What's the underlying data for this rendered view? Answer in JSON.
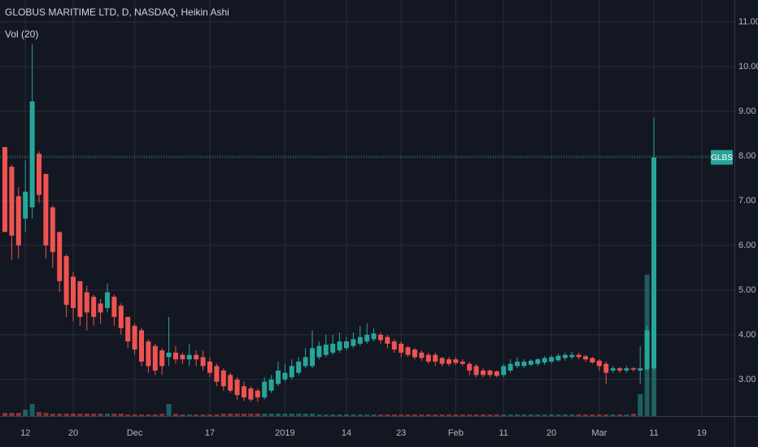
{
  "chart_data": {
    "type": "candlestick",
    "title": "GLOBUS MARITIME LTD, D, NASDAQ, Heikin Ashi",
    "indicator_label": "Vol (20)",
    "categories": [
      null,
      null,
      null,
      "12",
      null,
      null,
      null,
      null,
      null,
      null,
      "20",
      null,
      null,
      null,
      null,
      null,
      null,
      null,
      null,
      "Dec",
      null,
      null,
      null,
      null,
      null,
      null,
      null,
      null,
      null,
      null,
      "17",
      null,
      null,
      null,
      null,
      null,
      null,
      null,
      null,
      null,
      null,
      "2019",
      null,
      null,
      null,
      null,
      null,
      null,
      null,
      null,
      "14",
      null,
      null,
      null,
      null,
      null,
      null,
      null,
      "23",
      null,
      null,
      null,
      null,
      null,
      null,
      null,
      "Feb",
      null,
      null,
      null,
      null,
      null,
      null,
      "11",
      null,
      null,
      null,
      null,
      null,
      null,
      "20",
      null,
      null,
      null,
      null,
      null,
      null,
      "Mar",
      null,
      null,
      null,
      null,
      null,
      null,
      null,
      "11",
      null,
      null,
      null,
      null,
      null,
      null,
      "19"
    ],
    "open": [
      8.2,
      7.76,
      7.1,
      6.6,
      6.85,
      8.05,
      7.6,
      6.85,
      6.3,
      5.76,
      5.3,
      5.2,
      4.95,
      4.85,
      4.7,
      4.6,
      4.85,
      4.65,
      4.4,
      4.2,
      4.1,
      3.85,
      3.75,
      3.65,
      3.5,
      3.6,
      3.55,
      3.45,
      3.55,
      3.5,
      3.4,
      3.3,
      3.2,
      3.1,
      3.0,
      2.85,
      2.8,
      2.75,
      2.6,
      2.75,
      2.9,
      3.0,
      3.05,
      3.15,
      3.3,
      3.3,
      3.5,
      3.55,
      3.6,
      3.65,
      3.7,
      3.75,
      3.8,
      3.85,
      3.9,
      4.0,
      3.95,
      3.85,
      3.8,
      3.72,
      3.67,
      3.6,
      3.55,
      3.55,
      3.48,
      3.45,
      3.45,
      3.4,
      3.35,
      3.3,
      3.2,
      3.2,
      3.18,
      3.1,
      3.2,
      3.3,
      3.3,
      3.33,
      3.35,
      3.38,
      3.4,
      3.43,
      3.48,
      3.5,
      3.55,
      3.52,
      3.48,
      3.42,
      3.35,
      3.2,
      3.25,
      3.2,
      3.25,
      3.2,
      3.23,
      3.25,
      null,
      null,
      null,
      null,
      null,
      null,
      null
    ],
    "high": [
      8.2,
      7.8,
      7.3,
      7.9,
      10.5,
      8.1,
      7.6,
      6.9,
      6.3,
      5.8,
      5.4,
      5.2,
      5.1,
      4.9,
      4.8,
      5.15,
      4.9,
      4.7,
      4.4,
      4.25,
      4.15,
      3.9,
      3.8,
      3.7,
      4.4,
      3.75,
      3.6,
      3.8,
      3.65,
      3.65,
      3.5,
      3.35,
      3.25,
      3.15,
      3.05,
      2.95,
      2.85,
      2.8,
      3.05,
      3.1,
      3.4,
      3.35,
      3.45,
      3.5,
      3.7,
      4.1,
      3.85,
      4.0,
      4.0,
      4.05,
      3.95,
      4.05,
      4.2,
      4.25,
      4.15,
      4.05,
      4.0,
      3.9,
      3.85,
      3.75,
      3.7,
      3.65,
      3.6,
      3.6,
      3.5,
      3.5,
      3.5,
      3.45,
      3.4,
      3.35,
      3.25,
      3.22,
      3.2,
      3.35,
      3.45,
      3.5,
      3.45,
      3.45,
      3.48,
      3.52,
      3.55,
      3.58,
      3.6,
      3.62,
      3.6,
      3.55,
      3.5,
      3.45,
      3.4,
      3.3,
      3.28,
      3.3,
      3.28,
      3.75,
      4.2,
      8.85,
      null,
      null,
      null,
      null,
      null,
      null,
      null
    ],
    "low": [
      6.3,
      5.67,
      5.7,
      6.3,
      6.6,
      6.95,
      5.7,
      5.5,
      4.95,
      4.4,
      4.3,
      4.2,
      4.1,
      4.2,
      4.25,
      4.5,
      4.2,
      4.0,
      3.7,
      3.55,
      3.3,
      3.15,
      3.1,
      3.1,
      3.3,
      3.35,
      3.35,
      3.3,
      3.3,
      3.2,
      3.05,
      2.85,
      2.75,
      2.7,
      2.55,
      2.52,
      2.5,
      2.5,
      2.55,
      2.7,
      2.85,
      2.95,
      3.0,
      3.1,
      3.25,
      3.25,
      3.45,
      3.5,
      3.55,
      3.6,
      3.65,
      3.7,
      3.75,
      3.8,
      3.85,
      3.8,
      3.7,
      3.6,
      3.5,
      3.5,
      3.45,
      3.42,
      3.35,
      3.3,
      3.3,
      3.3,
      3.32,
      3.3,
      3.1,
      3.05,
      3.05,
      3.05,
      3.05,
      3.05,
      3.15,
      3.25,
      3.25,
      3.3,
      3.3,
      3.33,
      3.35,
      3.4,
      3.42,
      3.45,
      3.45,
      3.4,
      3.35,
      3.2,
      2.9,
      3.15,
      3.15,
      3.15,
      3.18,
      2.9,
      3.2,
      3.2,
      null,
      null,
      null,
      null,
      null,
      null,
      null
    ],
    "close": [
      6.3,
      6.22,
      6.0,
      7.2,
      9.22,
      7.13,
      6.0,
      5.85,
      5.2,
      4.67,
      4.6,
      4.4,
      4.5,
      4.4,
      4.5,
      4.95,
      4.4,
      4.15,
      3.85,
      3.67,
      3.4,
      3.3,
      3.2,
      3.3,
      3.6,
      3.45,
      3.45,
      3.55,
      3.45,
      3.3,
      3.15,
      2.95,
      2.85,
      2.75,
      2.65,
      2.6,
      2.55,
      2.6,
      2.95,
      3.0,
      3.2,
      3.15,
      3.3,
      3.4,
      3.5,
      3.7,
      3.75,
      3.78,
      3.8,
      3.85,
      3.85,
      3.9,
      3.95,
      4.0,
      4.03,
      3.88,
      3.8,
      3.67,
      3.6,
      3.55,
      3.5,
      3.48,
      3.4,
      3.4,
      3.35,
      3.35,
      3.37,
      3.35,
      3.2,
      3.1,
      3.1,
      3.1,
      3.08,
      3.3,
      3.35,
      3.4,
      3.4,
      3.42,
      3.45,
      3.48,
      3.5,
      3.53,
      3.55,
      3.55,
      3.5,
      3.45,
      3.38,
      3.3,
      3.15,
      3.25,
      3.2,
      3.25,
      3.22,
      3.25,
      4.1,
      7.97,
      null,
      null,
      null,
      null,
      null,
      null,
      null
    ],
    "volume": [
      4,
      4,
      4,
      8,
      15,
      5,
      4,
      3,
      3,
      3,
      3,
      3,
      3,
      3,
      3,
      3,
      3,
      3,
      2,
      2,
      2,
      2,
      2,
      3,
      15,
      3,
      2,
      2,
      2,
      2,
      2,
      2,
      3,
      3,
      3,
      3,
      3,
      3,
      3,
      3,
      3,
      3,
      3,
      3,
      3,
      3,
      2,
      2,
      2,
      2,
      2,
      2,
      2,
      2,
      2,
      2,
      2,
      2,
      2,
      2,
      2,
      2,
      2,
      2,
      2,
      2,
      2,
      2,
      2,
      2,
      2,
      2,
      2,
      2,
      2,
      2,
      2,
      2,
      2,
      2,
      2,
      2,
      2,
      2,
      2,
      2,
      2,
      2,
      2,
      2,
      2,
      2,
      3,
      27,
      174,
      127,
      null,
      null,
      null,
      null,
      null,
      null,
      null
    ],
    "up_color": "#26a69a",
    "down_color": "#ef5350",
    "volume_up_color": "rgba(38,166,154,0.5)",
    "volume_down_color": "rgba(239,83,80,0.5)",
    "ylim": [
      2.18,
      11.49
    ],
    "yticks": [
      {
        "value": 3,
        "label": "3.00"
      },
      {
        "value": 4,
        "label": "4.00"
      },
      {
        "value": 5,
        "label": "5.00"
      },
      {
        "value": 6,
        "label": "6.00"
      },
      {
        "value": 7,
        "label": "7.00"
      },
      {
        "value": 8,
        "label": "8.00"
      },
      {
        "value": 9,
        "label": "9.00"
      },
      {
        "value": 10,
        "label": "10.00"
      },
      {
        "value": 11,
        "label": "11.00"
      }
    ],
    "grid": true,
    "price_line": {
      "label": "GLBS",
      "value": 7.97
    }
  }
}
